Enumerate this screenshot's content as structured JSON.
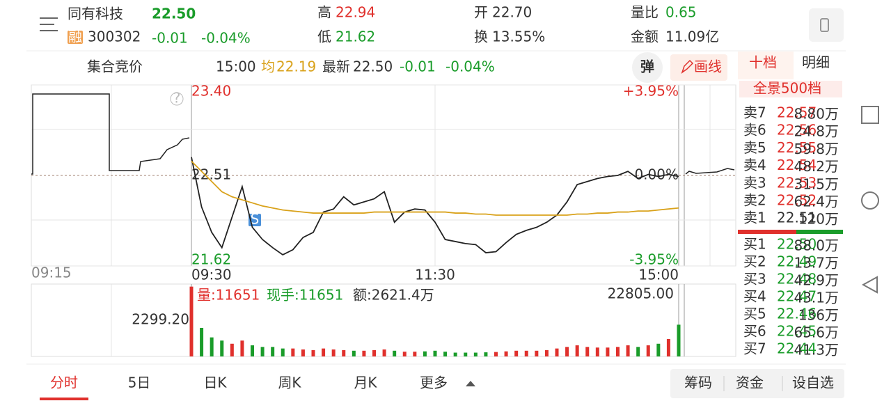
{
  "header": {
    "name": "同有科技",
    "badge": "融",
    "code": "300302",
    "price": "22.50",
    "change": "-0.01",
    "change_pct": "-0.04%",
    "high_label": "高",
    "high": "22.94",
    "low_label": "低",
    "low": "21.62",
    "open_label": "开",
    "open": "22.70",
    "turnover_label": "换",
    "turnover": "13.55%",
    "vol_ratio_label": "量比",
    "vol_ratio": "0.65",
    "amount_label": "金额",
    "amount": "11.09亿"
  },
  "info_bar": {
    "auction": "集合竞价",
    "time": "15:00",
    "avg_label": "均",
    "avg": "22.19",
    "latest_label": "最新",
    "latest": "22.50",
    "change": "-0.01",
    "change_pct": "-0.04%",
    "popup_button": "弹",
    "draw_button": "画线",
    "auction_time": "09:15"
  },
  "chart_data": [
    {
      "type": "line",
      "xlim": [
        0,
        240
      ],
      "xticks": [
        {
          "value": 0,
          "label": "09:30"
        },
        {
          "value": 120,
          "label": "11:30"
        },
        {
          "value": 240,
          "label": "15:00"
        }
      ],
      "ylim": [
        21.62,
        23.4
      ],
      "yticks": [
        21.62,
        22.51,
        {
          "value": 23.4,
          "label": "23.40"
        }
      ],
      "y2lim": [
        -3.95,
        3.95
      ],
      "y2ticks": [
        {
          "value": -3.95,
          "label": "-3.95%"
        },
        {
          "value": 0,
          "label": "0.00%"
        },
        {
          "value": 3.95,
          "label": "+3.95%"
        }
      ],
      "x": [
        0,
        5,
        10,
        15,
        20,
        25,
        30,
        35,
        40,
        45,
        50,
        55,
        60,
        65,
        70,
        75,
        80,
        85,
        90,
        95,
        100,
        105,
        110,
        115,
        120,
        125,
        130,
        135,
        140,
        145,
        150,
        155,
        160,
        165,
        170,
        175,
        180,
        185,
        190,
        195,
        200,
        205,
        210,
        215,
        220,
        225,
        230,
        235,
        240
      ],
      "series": [
        {
          "color": "#222222",
          "values": [
            22.69,
            22.2,
            21.95,
            21.8,
            22.1,
            22.4,
            22.0,
            21.88,
            21.8,
            21.73,
            21.78,
            21.9,
            21.95,
            22.15,
            22.18,
            22.3,
            22.22,
            22.25,
            22.28,
            22.35,
            22.05,
            22.15,
            22.18,
            22.17,
            22.05,
            21.88,
            21.86,
            21.84,
            21.83,
            21.75,
            21.76,
            21.85,
            21.93,
            21.97,
            22.0,
            22.05,
            22.12,
            22.25,
            22.42,
            22.45,
            22.48,
            22.5,
            22.51,
            22.55,
            22.48,
            22.52,
            22.5,
            22.52,
            22.5
          ]
        },
        {
          "color": "#d9a21b",
          "values": [
            22.65,
            22.55,
            22.45,
            22.35,
            22.3,
            22.27,
            22.24,
            22.21,
            22.19,
            22.17,
            22.16,
            22.15,
            22.14,
            22.14,
            22.14,
            22.14,
            22.14,
            22.14,
            22.15,
            22.15,
            22.15,
            22.15,
            22.15,
            22.15,
            22.15,
            22.15,
            22.14,
            22.14,
            22.13,
            22.13,
            22.12,
            22.12,
            22.12,
            22.12,
            22.12,
            22.12,
            22.12,
            22.12,
            22.13,
            22.13,
            22.14,
            22.14,
            22.15,
            22.15,
            22.16,
            22.16,
            22.17,
            22.18,
            22.19
          ]
        }
      ],
      "grid": true
    },
    {
      "type": "bar",
      "xlim": [
        0,
        240
      ],
      "x": [
        0,
        5,
        10,
        15,
        20,
        25,
        30,
        35,
        40,
        45,
        50,
        55,
        60,
        65,
        70,
        75,
        80,
        85,
        90,
        95,
        100,
        105,
        110,
        115,
        120,
        125,
        130,
        135,
        140,
        145,
        150,
        155,
        160,
        165,
        170,
        175,
        180,
        185,
        190,
        195,
        200,
        205,
        210,
        215,
        220,
        225,
        230,
        235,
        240
      ],
      "values": [
        22000,
        9000,
        6000,
        5000,
        4000,
        5000,
        3500,
        3000,
        3000,
        2500,
        2500,
        2200,
        2000,
        2500,
        2200,
        2000,
        1800,
        1800,
        2000,
        2200,
        1800,
        1500,
        1500,
        1600,
        1800,
        1500,
        1200,
        1200,
        1200,
        1300,
        1400,
        1600,
        1800,
        1800,
        1800,
        2000,
        2500,
        3000,
        3500,
        3000,
        2800,
        2800,
        3000,
        3500,
        3000,
        3500,
        4000,
        5500,
        10000
      ],
      "ylim": [
        0,
        22805
      ],
      "yticks": [
        {
          "value": 22805,
          "label": "22805.00"
        }
      ],
      "up_color": "#e0302c",
      "down_color": "#1a9c2a",
      "annotations": [
        "量:11651",
        "现手:11651",
        "额:2621.4万",
        "2299.20"
      ]
    }
  ],
  "order_book": {
    "tabs": [
      "十档",
      "明细"
    ],
    "depth": "全景500档",
    "asks": [
      {
        "label": "卖7",
        "price": "22.57",
        "volume": "8.80万"
      },
      {
        "label": "卖6",
        "price": "22.56",
        "volume": "24.8万"
      },
      {
        "label": "卖5",
        "price": "22.55",
        "volume": "59.8万"
      },
      {
        "label": "卖4",
        "price": "22.54",
        "volume": "48.2万"
      },
      {
        "label": "卖3",
        "price": "22.53",
        "volume": "31.5万"
      },
      {
        "label": "卖2",
        "price": "22.52",
        "volume": "62.4万"
      },
      {
        "label": "卖1",
        "price": "22.51",
        "volume": "120万"
      }
    ],
    "bids": [
      {
        "label": "买1",
        "price": "22.50",
        "volume": "88.0万"
      },
      {
        "label": "买2",
        "price": "22.49",
        "volume": "13.7万"
      },
      {
        "label": "买3",
        "price": "22.48",
        "volume": "42.9万"
      },
      {
        "label": "买4",
        "price": "22.47",
        "volume": "43.1万"
      },
      {
        "label": "买5",
        "price": "22.46",
        "volume": "136万"
      },
      {
        "label": "买6",
        "price": "22.45",
        "volume": "65.6万"
      },
      {
        "label": "买7",
        "price": "22.44",
        "volume": "41.3万"
      }
    ]
  },
  "bottom_bar": {
    "tabs": [
      "分时",
      "5日",
      "日K",
      "周K",
      "月K",
      "更多"
    ],
    "buttons": [
      "筹码",
      "资金",
      "设自选"
    ]
  }
}
